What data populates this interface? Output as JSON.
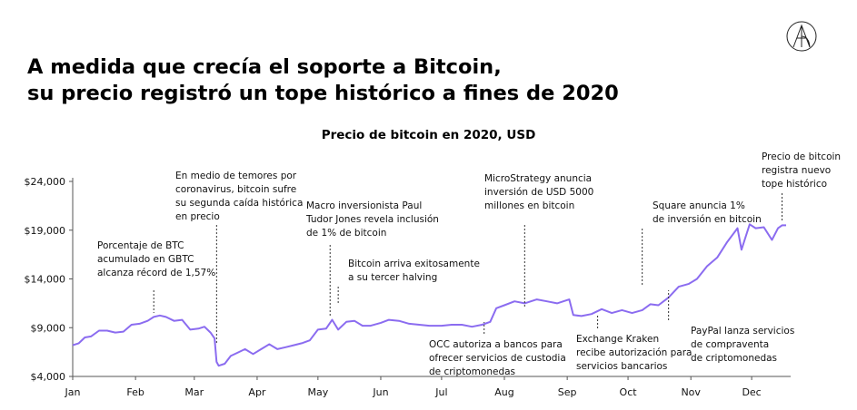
{
  "headline": {
    "line1": "A medida que crecía el soporte a Bitcoin,",
    "line2": "su precio registró un tope histórico a fines de 2020"
  },
  "chart_data": {
    "type": "line",
    "title": "Precio de bitcoin en 2020, USD",
    "xlabel": "",
    "ylabel": "",
    "x_ticks": [
      "Jan",
      "Feb",
      "Mar",
      "Apr",
      "May",
      "Jun",
      "Jul",
      "Aug",
      "Sep",
      "Oct",
      "Nov",
      "Dec"
    ],
    "y_ticks": [
      "$4,000",
      "$9,000",
      "$14,000",
      "$19,000",
      "$24,000"
    ],
    "y_tick_values": [
      4000,
      9000,
      14000,
      19000,
      24000
    ],
    "ylim": [
      4000,
      24000
    ],
    "xlim": [
      "2020-01-01",
      "2020-12-18"
    ],
    "grid": false,
    "color": "#8b6cf0",
    "series": [
      {
        "dates": [
          "2020-01-01",
          "2020-01-04",
          "2020-01-07",
          "2020-01-10",
          "2020-01-14",
          "2020-01-18",
          "2020-01-22",
          "2020-01-26",
          "2020-01-30",
          "2020-02-03",
          "2020-02-07",
          "2020-02-10",
          "2020-02-13",
          "2020-02-16",
          "2020-02-20",
          "2020-02-24",
          "2020-02-28",
          "2020-03-03",
          "2020-03-06",
          "2020-03-09",
          "2020-03-11",
          "2020-03-12",
          "2020-03-13",
          "2020-03-16",
          "2020-03-19",
          "2020-03-23",
          "2020-03-26",
          "2020-03-30",
          "2020-04-03",
          "2020-04-07",
          "2020-04-11",
          "2020-04-15",
          "2020-04-19",
          "2020-04-23",
          "2020-04-27",
          "2020-05-01",
          "2020-05-05",
          "2020-05-08",
          "2020-05-11",
          "2020-05-15",
          "2020-05-19",
          "2020-05-23",
          "2020-05-27",
          "2020-06-01",
          "2020-06-05",
          "2020-06-10",
          "2020-06-15",
          "2020-06-20",
          "2020-06-25",
          "2020-07-01",
          "2020-07-06",
          "2020-07-11",
          "2020-07-16",
          "2020-07-21",
          "2020-07-25",
          "2020-07-28",
          "2020-08-01",
          "2020-08-06",
          "2020-08-11",
          "2020-08-17",
          "2020-08-22",
          "2020-08-27",
          "2020-09-02",
          "2020-09-04",
          "2020-09-08",
          "2020-09-13",
          "2020-09-18",
          "2020-09-23",
          "2020-09-28",
          "2020-10-03",
          "2020-10-08",
          "2020-10-12",
          "2020-10-16",
          "2020-10-21",
          "2020-10-26",
          "2020-10-31",
          "2020-11-04",
          "2020-11-09",
          "2020-11-14",
          "2020-11-19",
          "2020-11-24",
          "2020-11-26",
          "2020-11-30",
          "2020-12-03",
          "2020-12-07",
          "2020-12-11",
          "2020-12-14",
          "2020-12-16",
          "2020-12-18"
        ],
        "values": [
          7200,
          7400,
          8000,
          8100,
          8700,
          8700,
          8500,
          8600,
          9300,
          9400,
          9700,
          10100,
          10250,
          10100,
          9700,
          9800,
          8800,
          8900,
          9100,
          8500,
          7900,
          5500,
          5100,
          5300,
          6100,
          6500,
          6800,
          6300,
          6800,
          7300,
          6800,
          7000,
          7200,
          7400,
          7700,
          8800,
          8900,
          9800,
          8800,
          9600,
          9700,
          9200,
          9200,
          9500,
          9800,
          9700,
          9400,
          9300,
          9200,
          9200,
          9300,
          9300,
          9100,
          9300,
          9600,
          11000,
          11300,
          11700,
          11500,
          11900,
          11700,
          11500,
          11900,
          10300,
          10200,
          10400,
          10900,
          10500,
          10800,
          10500,
          10800,
          11400,
          11300,
          12100,
          13200,
          13500,
          14000,
          15300,
          16200,
          17800,
          19200,
          17000,
          19600,
          19200,
          19300,
          18000,
          19200,
          19500,
          19500
        ]
      }
    ],
    "annotations": [
      {
        "lines": [
          "Porcentaje de BTC",
          "acumulado en GBTC",
          "alcanza récord de 1,57%"
        ],
        "date": "2020-02-10",
        "value": 9800
      },
      {
        "lines": [
          "En medio de temores por",
          "coronavirus, bitcoin sufre",
          "su segunda caída histórica",
          "en precio"
        ],
        "date": "2020-03-12",
        "value": 5600
      },
      {
        "lines": [
          "Macro inversionista Paul",
          "Tudor Jones revela inclusión",
          "de 1% de bitcoin"
        ],
        "date": "2020-05-07",
        "value": 9300
      },
      {
        "lines": [
          "Bitcoin arriva exitosamente",
          "a su tercer halving"
        ],
        "date": "2020-05-11",
        "value": 9400
      },
      {
        "lines": [
          "MicroStrategy anuncia",
          "inversión de USD 5000",
          "millones en bitcoin"
        ],
        "date": "2020-08-11",
        "value": 11400
      },
      {
        "lines": [
          "Square anuncia 1%",
          "de inversión en bitcoin"
        ],
        "date": "2020-10-08",
        "value": 11000
      },
      {
        "lines": [
          "Precio de bitcoin",
          "registra nuevo",
          "tope histórico"
        ],
        "date": "2020-12-16",
        "value": 19600
      },
      {
        "lines": [
          "OCC autoriza a bancos para",
          "ofrecer servicios de custodia",
          "de criptomonedas"
        ],
        "date": "2020-07-22",
        "value": 9100
      },
      {
        "lines": [
          "Exchange Kraken",
          "recibe autorización para",
          "servicios bancarios"
        ],
        "date": "2020-09-16",
        "value": 10600
      },
      {
        "lines": [
          "PayPal lanza servicios",
          "de compraventa",
          "de criptomonedas"
        ],
        "date": "2020-10-21",
        "value": 12000
      }
    ]
  }
}
